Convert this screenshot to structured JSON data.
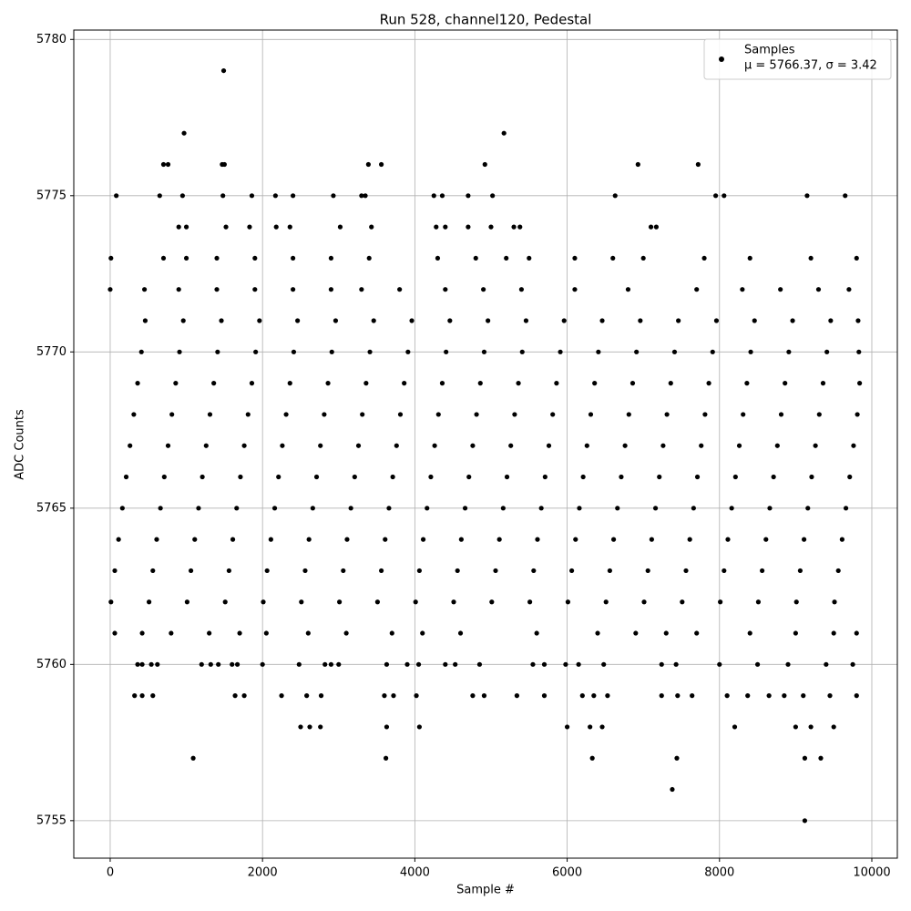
{
  "chart_data": {
    "type": "scatter",
    "title": "Run 528, channel120, Pedestal",
    "xlabel": "Sample #",
    "ylabel": "ADC Counts",
    "xlim": [
      -478,
      10335
    ],
    "ylim": [
      5753.8,
      5780.3
    ],
    "xticks": [
      0,
      2000,
      4000,
      6000,
      8000,
      10000
    ],
    "yticks": [
      5755,
      5760,
      5765,
      5770,
      5775,
      5780
    ],
    "grid": true,
    "legend": "upper right",
    "legend_note": "μ = 5766.37, σ = 3.42",
    "series": [
      {
        "name": "Samples",
        "color": "#000000",
        "x": [
          10,
          510,
          1010,
          1510,
          2010,
          2510,
          3010,
          3510,
          4010,
          4510,
          5010,
          5510,
          6010,
          6510,
          7010,
          7510,
          8010,
          8510,
          9010,
          9510,
          60,
          560,
          1060,
          1560,
          2060,
          2560,
          3060,
          3560,
          4060,
          4560,
          5060,
          5560,
          6060,
          6560,
          7060,
          7560,
          8060,
          8560,
          9060,
          9560,
          110,
          610,
          1110,
          1610,
          2110,
          2610,
          3110,
          3610,
          4110,
          4610,
          5110,
          5610,
          6110,
          6610,
          7110,
          7610,
          8110,
          8610,
          9110,
          9610,
          160,
          660,
          1160,
          1660,
          2160,
          2660,
          3160,
          3660,
          4160,
          4660,
          5160,
          5660,
          6160,
          6660,
          7160,
          7660,
          8160,
          8660,
          9160,
          9660,
          210,
          710,
          1210,
          1710,
          2210,
          2710,
          3210,
          3710,
          4210,
          4710,
          5210,
          5710,
          6210,
          6710,
          7210,
          7710,
          8210,
          8710,
          9210,
          9710,
          260,
          760,
          1260,
          1760,
          2260,
          2760,
          3260,
          3760,
          4260,
          4760,
          5260,
          5760,
          6260,
          6760,
          7260,
          7760,
          8260,
          8760,
          9260,
          9760,
          310,
          810,
          1310,
          1810,
          2310,
          2810,
          3310,
          3810,
          4310,
          4810,
          5310,
          5810,
          6310,
          6810,
          7310,
          7810,
          8310,
          8810,
          9310,
          9810,
          360,
          860,
          1360,
          1860,
          2360,
          2860,
          3360,
          3860,
          4360,
          4860,
          5360,
          5860,
          6360,
          6860,
          7360,
          7860,
          8360,
          8860,
          9360,
          9840,
          410,
          910,
          1410,
          1910,
          2410,
          2910,
          3410,
          3910,
          4410,
          4910,
          5410,
          5910,
          6410,
          6910,
          7410,
          7910,
          8410,
          8910,
          9410,
          9830,
          460,
          960,
          1460,
          1960,
          2460,
          2960,
          3460,
          3960,
          4460,
          4960,
          5460,
          5960,
          6460,
          6960,
          7460,
          7960,
          8460,
          8960,
          9460,
          9820,
          60,
          420,
          800,
          1300,
          1700,
          2050,
          2600,
          3100,
          3700,
          4100,
          4600,
          5600,
          6400,
          6900,
          7300,
          7700,
          8400,
          9000,
          9500,
          9800,
          0,
          450,
          900,
          1400,
          1900,
          2400,
          2900,
          3300,
          3800,
          4400,
          4900,
          5400,
          6100,
          6800,
          7700,
          8300,
          8800,
          9300,
          9700,
          10,
          700,
          1000,
          1400,
          1900,
          2400,
          2900,
          3400,
          4300,
          4800,
          5200,
          5500,
          6100,
          6600,
          7000,
          7800,
          8400,
          9200,
          9800,
          900,
          1000,
          1520,
          1830,
          2180,
          2360,
          3020,
          3430,
          4280,
          4400,
          4700,
          5000,
          5300,
          5380,
          7100,
          7170,
          80,
          650,
          950,
          1480,
          1860,
          2170,
          2400,
          2930,
          3300,
          3350,
          4250,
          4360,
          4700,
          5020,
          6630,
          7950,
          8060,
          9150,
          9650,
          700,
          760,
          1470,
          1500,
          3390,
          3560,
          4920,
          6930,
          7720,
          970,
          5170,
          1490,
          360,
          420,
          540,
          620,
          1200,
          1320,
          1420,
          1600,
          1670,
          2000,
          2480,
          2820,
          2900,
          3000,
          3630,
          3900,
          4050,
          4400,
          4530,
          4850,
          5550,
          5700,
          5980,
          6150,
          6480,
          7240,
          7430,
          8000,
          8500,
          8900,
          9400,
          9750,
          320,
          420,
          560,
          1640,
          1760,
          2250,
          2580,
          2770,
          3600,
          3720,
          4020,
          4760,
          4910,
          5340,
          5700,
          6200,
          6350,
          6530,
          7240,
          7450,
          7640,
          8100,
          8370,
          8650,
          8850,
          9100,
          9450,
          9800,
          2500,
          2620,
          2760,
          3630,
          4060,
          6000,
          6300,
          6460,
          8200,
          9000,
          9200,
          9500,
          1090,
          3620,
          6330,
          7440,
          9120,
          9330,
          7380,
          9120
        ],
        "values": [
          5762,
          5762,
          5762,
          5762,
          5762,
          5762,
          5762,
          5762,
          5762,
          5762,
          5762,
          5762,
          5762,
          5762,
          5762,
          5762,
          5762,
          5762,
          5762,
          5762,
          5763,
          5763,
          5763,
          5763,
          5763,
          5763,
          5763,
          5763,
          5763,
          5763,
          5763,
          5763,
          5763,
          5763,
          5763,
          5763,
          5763,
          5763,
          5763,
          5763,
          5764,
          5764,
          5764,
          5764,
          5764,
          5764,
          5764,
          5764,
          5764,
          5764,
          5764,
          5764,
          5764,
          5764,
          5764,
          5764,
          5764,
          5764,
          5764,
          5764,
          5765,
          5765,
          5765,
          5765,
          5765,
          5765,
          5765,
          5765,
          5765,
          5765,
          5765,
          5765,
          5765,
          5765,
          5765,
          5765,
          5765,
          5765,
          5765,
          5765,
          5766,
          5766,
          5766,
          5766,
          5766,
          5766,
          5766,
          5766,
          5766,
          5766,
          5766,
          5766,
          5766,
          5766,
          5766,
          5766,
          5766,
          5766,
          5766,
          5766,
          5767,
          5767,
          5767,
          5767,
          5767,
          5767,
          5767,
          5767,
          5767,
          5767,
          5767,
          5767,
          5767,
          5767,
          5767,
          5767,
          5767,
          5767,
          5767,
          5767,
          5768,
          5768,
          5768,
          5768,
          5768,
          5768,
          5768,
          5768,
          5768,
          5768,
          5768,
          5768,
          5768,
          5768,
          5768,
          5768,
          5768,
          5768,
          5768,
          5768,
          5769,
          5769,
          5769,
          5769,
          5769,
          5769,
          5769,
          5769,
          5769,
          5769,
          5769,
          5769,
          5769,
          5769,
          5769,
          5769,
          5769,
          5769,
          5769,
          5769,
          5770,
          5770,
          5770,
          5770,
          5770,
          5770,
          5770,
          5770,
          5770,
          5770,
          5770,
          5770,
          5770,
          5770,
          5770,
          5770,
          5770,
          5770,
          5770,
          5770,
          5771,
          5771,
          5771,
          5771,
          5771,
          5771,
          5771,
          5771,
          5771,
          5771,
          5771,
          5771,
          5771,
          5771,
          5771,
          5771,
          5771,
          5771,
          5771,
          5771,
          5761,
          5761,
          5761,
          5761,
          5761,
          5761,
          5761,
          5761,
          5761,
          5761,
          5761,
          5761,
          5761,
          5761,
          5761,
          5761,
          5761,
          5761,
          5761,
          5761,
          5772,
          5772,
          5772,
          5772,
          5772,
          5772,
          5772,
          5772,
          5772,
          5772,
          5772,
          5772,
          5772,
          5772,
          5772,
          5772,
          5772,
          5772,
          5772,
          5773,
          5773,
          5773,
          5773,
          5773,
          5773,
          5773,
          5773,
          5773,
          5773,
          5773,
          5773,
          5773,
          5773,
          5773,
          5773,
          5773,
          5773,
          5773,
          5774,
          5774,
          5774,
          5774,
          5774,
          5774,
          5774,
          5774,
          5774,
          5774,
          5774,
          5774,
          5774,
          5774,
          5774,
          5774,
          5775,
          5775,
          5775,
          5775,
          5775,
          5775,
          5775,
          5775,
          5775,
          5775,
          5775,
          5775,
          5775,
          5775,
          5775,
          5775,
          5775,
          5775,
          5775,
          5776,
          5776,
          5776,
          5776,
          5776,
          5776,
          5776,
          5776,
          5776,
          5777,
          5777,
          5779,
          5760,
          5760,
          5760,
          5760,
          5760,
          5760,
          5760,
          5760,
          5760,
          5760,
          5760,
          5760,
          5760,
          5760,
          5760,
          5760,
          5760,
          5760,
          5760,
          5760,
          5760,
          5760,
          5760,
          5760,
          5760,
          5760,
          5760,
          5760,
          5760,
          5760,
          5760,
          5760,
          5759,
          5759,
          5759,
          5759,
          5759,
          5759,
          5759,
          5759,
          5759,
          5759,
          5759,
          5759,
          5759,
          5759,
          5759,
          5759,
          5759,
          5759,
          5759,
          5759,
          5759,
          5759,
          5759,
          5759,
          5759,
          5759,
          5759,
          5759,
          5758,
          5758,
          5758,
          5758,
          5758,
          5758,
          5758,
          5758,
          5758,
          5758,
          5758,
          5758,
          5757,
          5757,
          5757,
          5757,
          5757,
          5757,
          5756,
          5755
        ]
      }
    ]
  }
}
